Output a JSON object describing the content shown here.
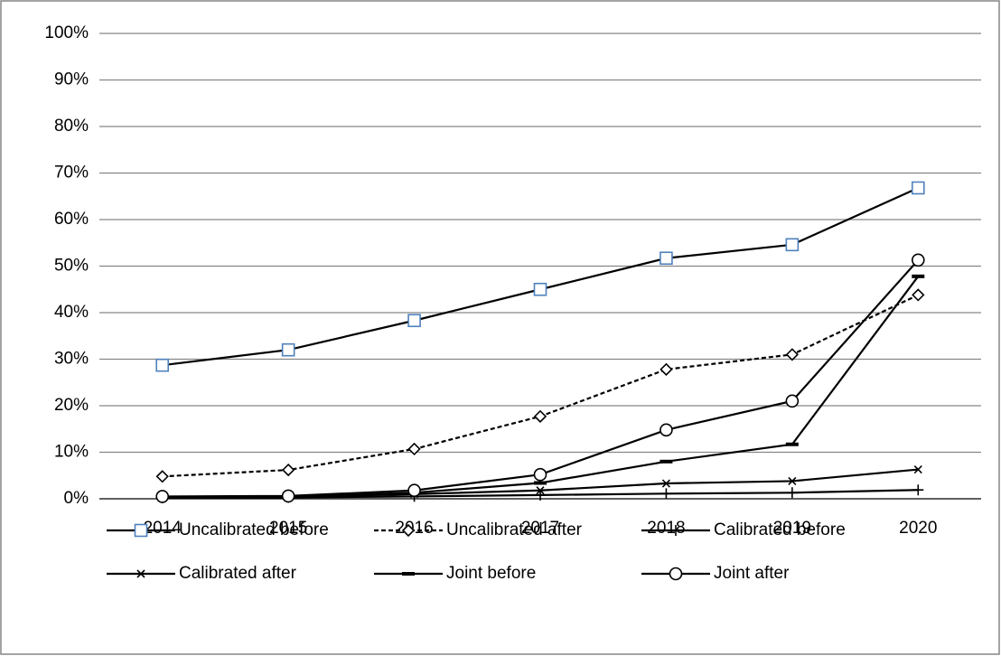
{
  "chart_data": {
    "type": "line",
    "categories": [
      "2014",
      "2015",
      "2016",
      "2017",
      "2018",
      "2019",
      "2020"
    ],
    "ylim": [
      0,
      100
    ],
    "yticks": [
      {
        "value": 0,
        "label": "0%"
      },
      {
        "value": 10,
        "label": "10%"
      },
      {
        "value": 20,
        "label": "20%"
      },
      {
        "value": 30,
        "label": "30%"
      },
      {
        "value": 40,
        "label": "40%"
      },
      {
        "value": 50,
        "label": "50%"
      },
      {
        "value": 60,
        "label": "60%"
      },
      {
        "value": 70,
        "label": "70%"
      },
      {
        "value": 80,
        "label": "80%"
      },
      {
        "value": 90,
        "label": "90%"
      },
      {
        "value": 100,
        "label": "100%"
      }
    ],
    "grid": true,
    "legend": "bottom",
    "series": [
      {
        "name": "Uncalibrated before",
        "color": "#000000",
        "marker": "square",
        "marker_color": "#4f81bd",
        "dash": false,
        "values": [
          28.7,
          32.0,
          38.3,
          45.0,
          51.7,
          54.6,
          66.8
        ]
      },
      {
        "name": "Uncalibrated after",
        "color": "#000000",
        "marker": "diamond",
        "marker_color": "#000000",
        "dash": true,
        "values": [
          4.8,
          6.2,
          10.7,
          17.7,
          27.8,
          31.0,
          43.8
        ]
      },
      {
        "name": "Calibrated before",
        "color": "#000000",
        "marker": "plus",
        "marker_color": "#000000",
        "dash": false,
        "values": [
          0.2,
          0.3,
          0.5,
          0.8,
          1.1,
          1.3,
          1.9
        ]
      },
      {
        "name": "Calibrated after",
        "color": "#000000",
        "marker": "x",
        "marker_color": "#000000",
        "dash": false,
        "values": [
          0.3,
          0.4,
          1.0,
          1.8,
          3.3,
          3.8,
          6.3
        ]
      },
      {
        "name": "Joint before",
        "color": "#000000",
        "marker": "dash",
        "marker_color": "#000000",
        "dash": false,
        "values": [
          0.4,
          0.5,
          1.3,
          3.4,
          8.0,
          11.7,
          47.8
        ]
      },
      {
        "name": "Joint after",
        "color": "#000000",
        "marker": "circle",
        "marker_color": "#000000",
        "dash": false,
        "values": [
          0.5,
          0.6,
          1.8,
          5.2,
          14.8,
          21.0,
          51.3
        ]
      }
    ]
  }
}
